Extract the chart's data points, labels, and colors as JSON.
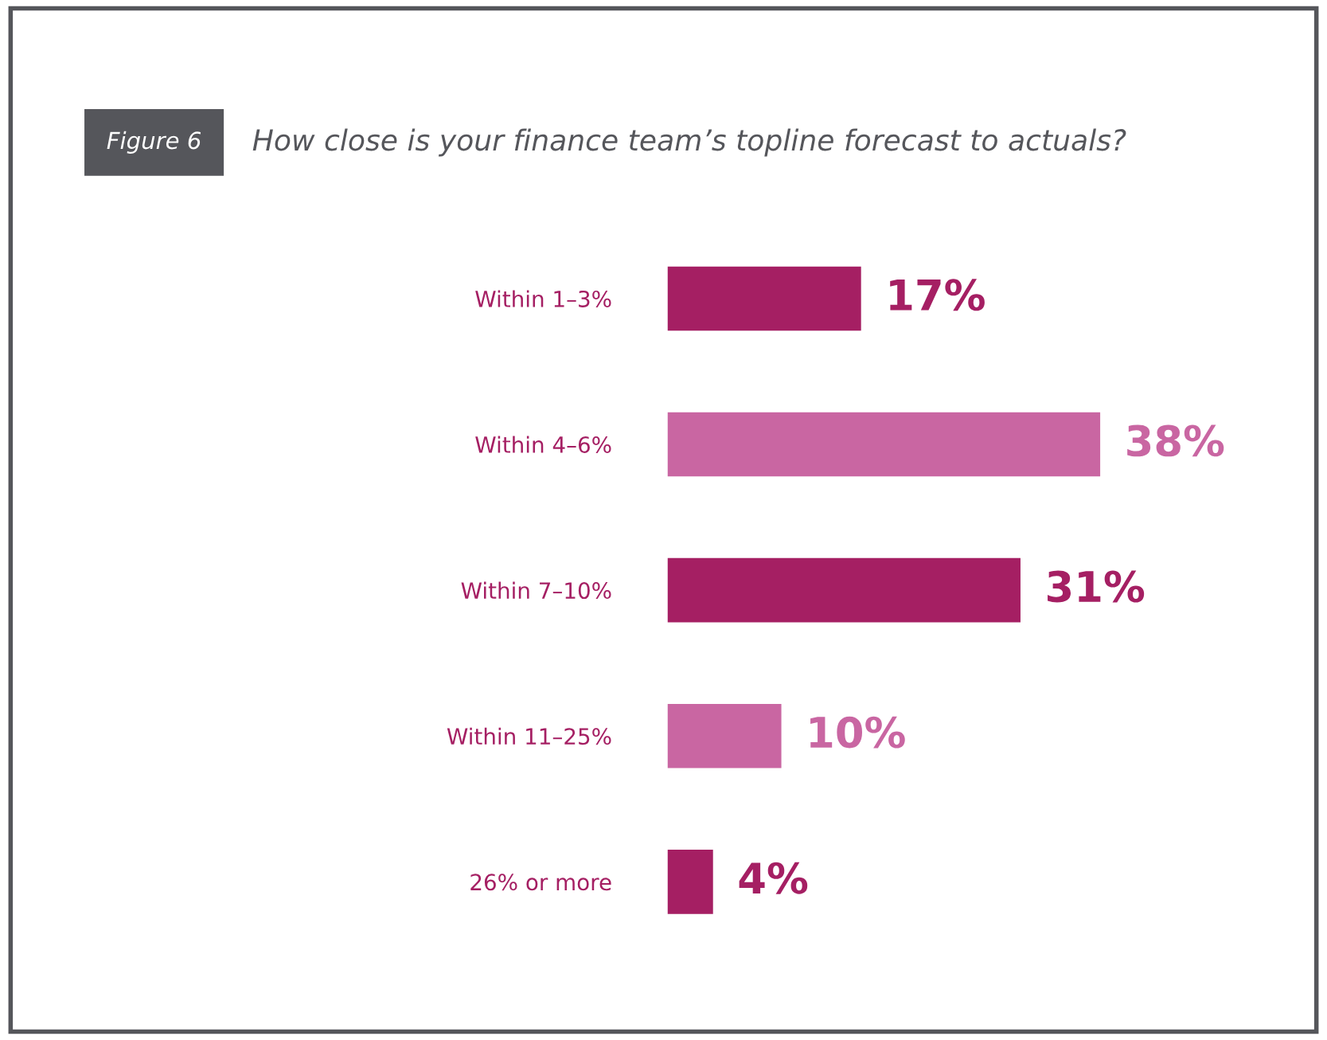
{
  "chart_data": {
    "type": "bar",
    "orientation": "horizontal",
    "title": "How close is your finance team’s topline forecast to actuals?",
    "annotations": [
      "Figure 6"
    ],
    "categories": [
      "Within 1–3%",
      "Within 4–6%",
      "Within 7–10%",
      "Within 11–25%",
      "26% or more"
    ],
    "values": [
      17,
      38,
      31,
      10,
      4
    ],
    "value_labels": [
      "17%",
      "38%",
      "31%",
      "10%",
      "4%"
    ],
    "colors": [
      "#a51f63",
      "#c966a2",
      "#a51f63",
      "#c966a2",
      "#a51f63"
    ],
    "grid": false,
    "legend": false
  }
}
